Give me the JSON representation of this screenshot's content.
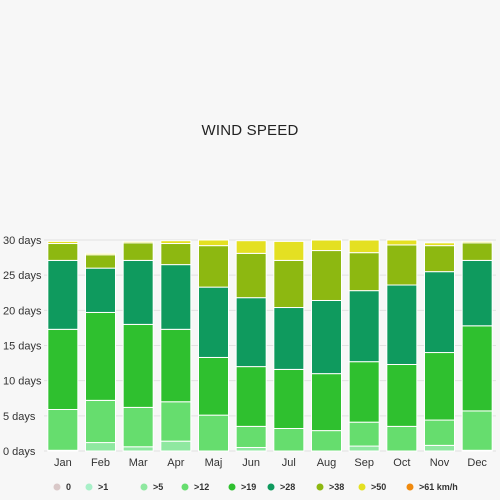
{
  "chart_data": {
    "type": "bar",
    "stacked": true,
    "title": "WIND SPEED",
    "categories": [
      "Jan",
      "Feb",
      "Mar",
      "Apr",
      "Maj",
      "Jun",
      "Jul",
      "Aug",
      "Sep",
      "Oct",
      "Nov",
      "Dec"
    ],
    "ylim": [
      0,
      30
    ],
    "yticks": [
      "0 days",
      "5 days",
      "10 days",
      "15 days",
      "20 days",
      "25 days",
      "30 days"
    ],
    "ytick_values": [
      0,
      5,
      10,
      15,
      20,
      25,
      30
    ],
    "legend_position": "bottom",
    "series": [
      {
        "name": "0",
        "color": "#d9c8c8",
        "values": [
          0,
          0,
          0,
          0,
          0,
          0,
          0,
          0,
          0,
          0,
          0,
          0
        ]
      },
      {
        "name": ">1",
        "color": "#a8f0c8",
        "values": [
          0,
          0,
          0,
          0,
          0,
          0,
          0,
          0,
          0,
          0,
          0,
          0
        ]
      },
      {
        "name": ">5",
        "color": "#8fe8a0",
        "values": [
          0.1,
          1.2,
          0.6,
          1.4,
          0,
          0.5,
          0,
          0,
          0.7,
          0,
          0.8,
          0.1
        ]
      },
      {
        "name": ">12",
        "color": "#66dd6e",
        "values": [
          5.8,
          6.0,
          5.6,
          5.6,
          5.1,
          3.0,
          3.2,
          2.9,
          3.4,
          3.5,
          3.6,
          5.6
        ]
      },
      {
        "name": ">19",
        "color": "#2fc02f",
        "values": [
          11.4,
          12.5,
          11.8,
          10.3,
          8.2,
          8.5,
          8.4,
          8.1,
          8.6,
          8.8,
          9.6,
          12.1
        ]
      },
      {
        "name": ">28",
        "color": "#0f9a5e",
        "values": [
          9.8,
          6.3,
          9.1,
          9.2,
          10.0,
          9.8,
          8.8,
          10.4,
          10.1,
          11.3,
          11.5,
          9.3
        ]
      },
      {
        "name": ">38",
        "color": "#8db811",
        "values": [
          2.4,
          1.9,
          2.5,
          3.0,
          5.9,
          6.3,
          6.7,
          7.1,
          5.4,
          5.7,
          3.7,
          2.5
        ]
      },
      {
        "name": ">50",
        "color": "#e4e022",
        "values": [
          0.3,
          0.2,
          0.2,
          0.4,
          0.8,
          1.8,
          2.7,
          1.5,
          1.8,
          0.7,
          0.4,
          0.2
        ]
      },
      {
        "name": ">61 km/h",
        "color": "#f08a0e",
        "values": [
          0,
          0,
          0,
          0,
          0,
          0,
          0,
          0,
          0,
          0,
          0,
          0
        ]
      }
    ]
  }
}
